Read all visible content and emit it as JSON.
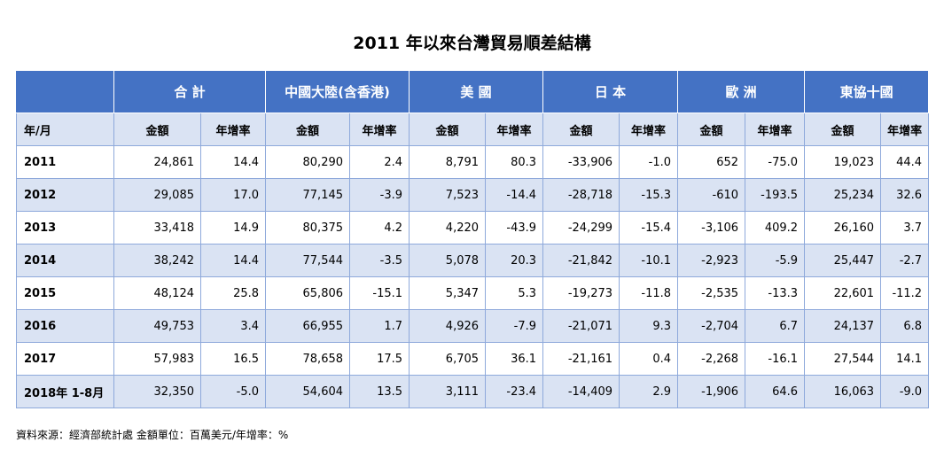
{
  "title": "2011 年以來台灣貿易順差結構",
  "header": {
    "regions": [
      "合 計",
      "中國大陸(含香港)",
      "美 國",
      "日 本",
      "歐 洲",
      "東協十國"
    ],
    "year_month_label": "年/月",
    "amount_label": "金額",
    "growth_label": "年增率"
  },
  "rows": [
    {
      "year": "2011",
      "cells": [
        "24,861",
        "14.4",
        "80,290",
        "2.4",
        "8,791",
        "80.3",
        "-33,906",
        "-1.0",
        "652",
        "-75.0",
        "19,023",
        "44.4"
      ]
    },
    {
      "year": "2012",
      "cells": [
        "29,085",
        "17.0",
        "77,145",
        "-3.9",
        "7,523",
        "-14.4",
        "-28,718",
        "-15.3",
        "-610",
        "-193.5",
        "25,234",
        "32.6"
      ]
    },
    {
      "year": "2013",
      "cells": [
        "33,418",
        "14.9",
        "80,375",
        "4.2",
        "4,220",
        "-43.9",
        "-24,299",
        "-15.4",
        "-3,106",
        "409.2",
        "26,160",
        "3.7"
      ]
    },
    {
      "year": "2014",
      "cells": [
        "38,242",
        "14.4",
        "77,544",
        "-3.5",
        "5,078",
        "20.3",
        "-21,842",
        "-10.1",
        "-2,923",
        "-5.9",
        "25,447",
        "-2.7"
      ]
    },
    {
      "year": "2015",
      "cells": [
        "48,124",
        "25.8",
        "65,806",
        "-15.1",
        "5,347",
        "5.3",
        "-19,273",
        "-11.8",
        "-2,535",
        "-13.3",
        "22,601",
        "-11.2"
      ]
    },
    {
      "year": "2016",
      "cells": [
        "49,753",
        "3.4",
        "66,955",
        "1.7",
        "4,926",
        "-7.9",
        "-21,071",
        "9.3",
        "-2,704",
        "6.7",
        "24,137",
        "6.8"
      ]
    },
    {
      "year": "2017",
      "cells": [
        "57,983",
        "16.5",
        "78,658",
        "17.5",
        "6,705",
        "36.1",
        "-21,161",
        "0.4",
        "-2,268",
        "-16.1",
        "27,544",
        "14.1"
      ]
    },
    {
      "year": "2018年 1-8月",
      "cells": [
        "32,350",
        "-5.0",
        "54,604",
        "13.5",
        "3,111",
        "-23.4",
        "-14,409",
        "2.9",
        "-1,906",
        "64.6",
        "16,063",
        "-9.0"
      ]
    }
  ],
  "footnote": "資料來源：經濟部統計處  金額單位：百萬美元/年增率：%",
  "colors": {
    "header_blue": "#4472C4",
    "band_light_blue": "#DAE3F3",
    "border": "#8EA9DB"
  }
}
